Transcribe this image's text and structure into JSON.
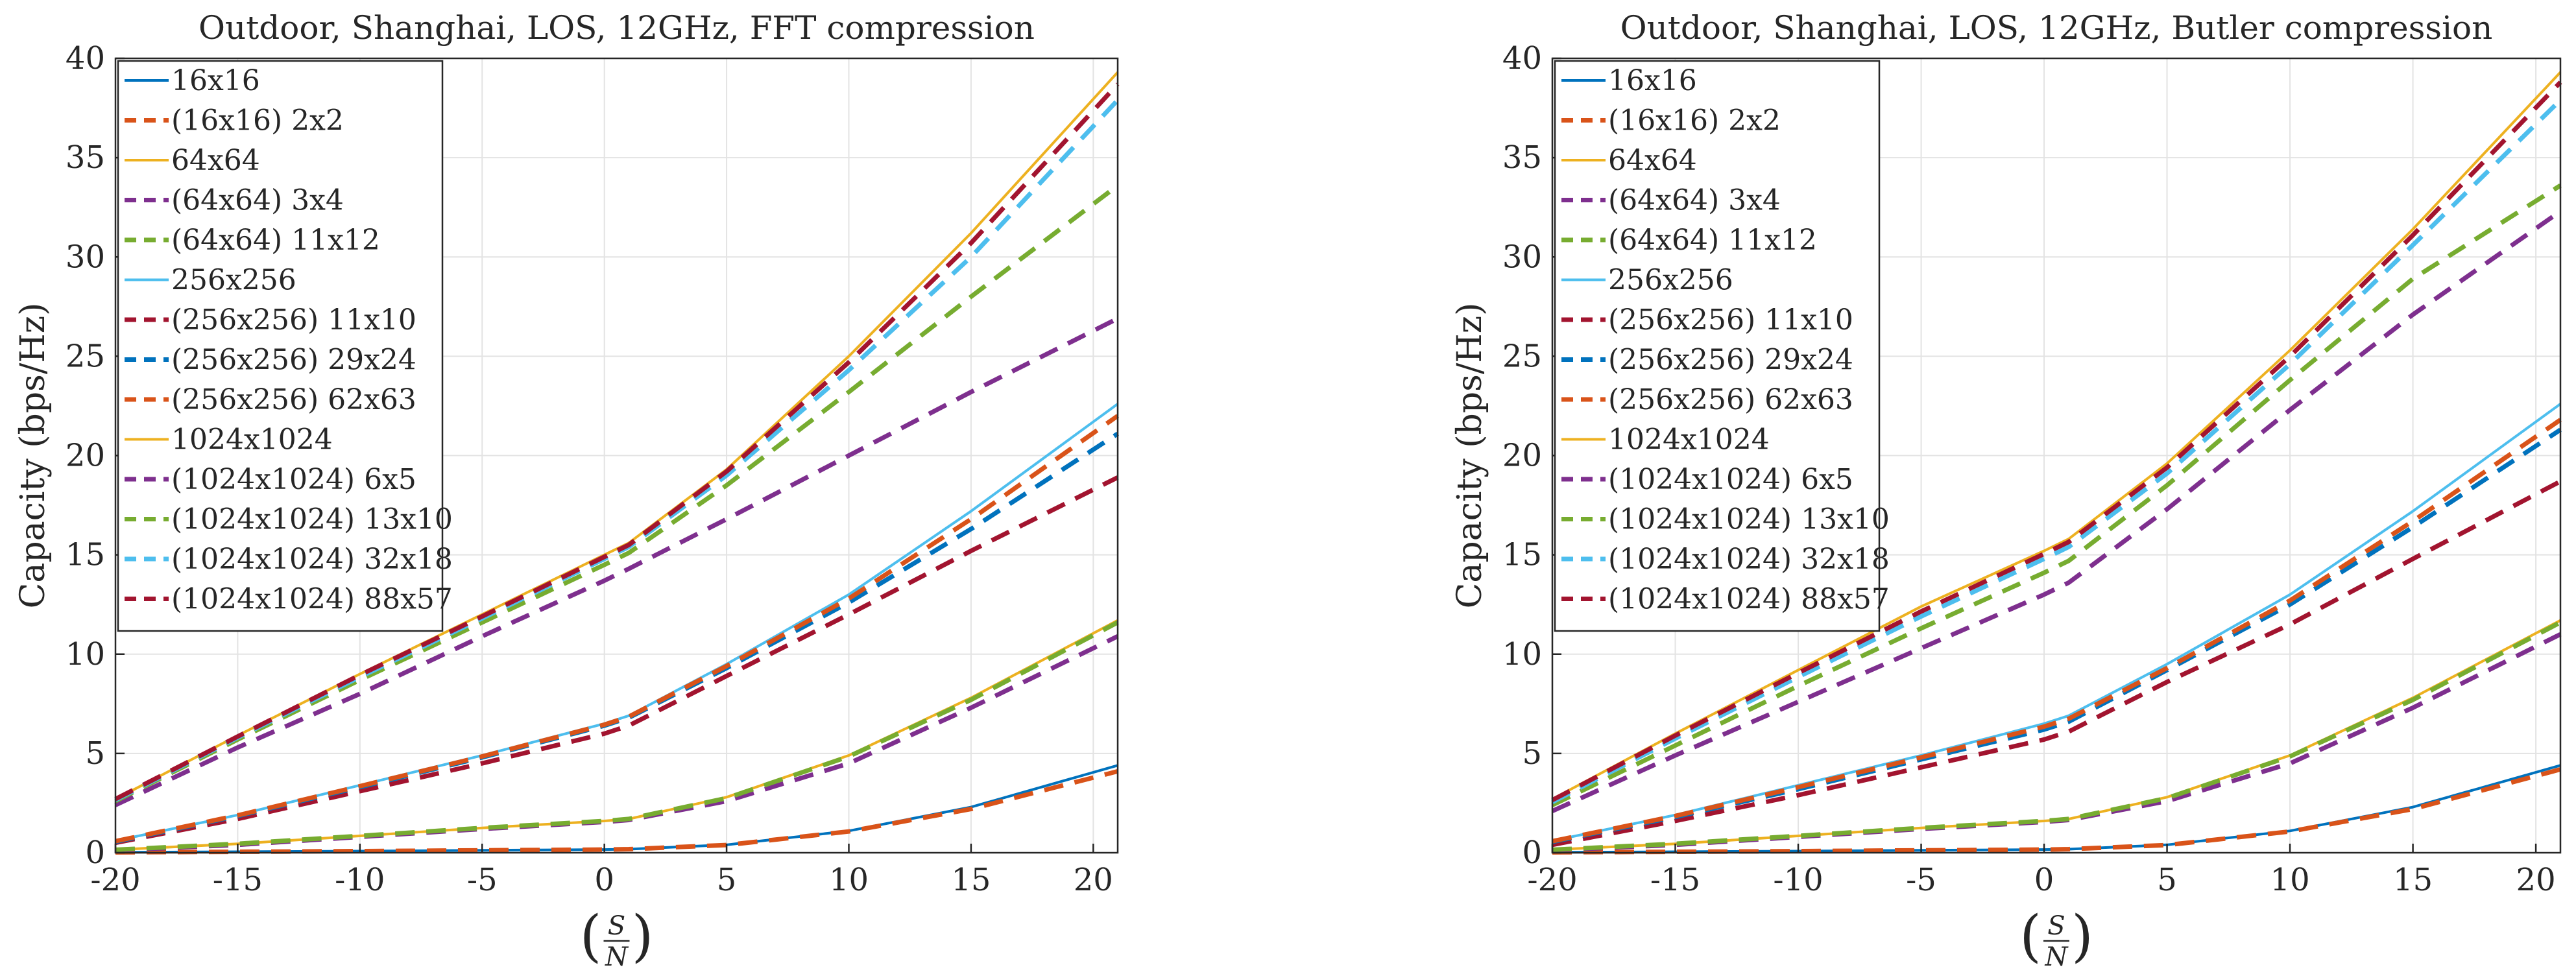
{
  "colors": {
    "blue": "#0072BD",
    "orange": "#D95319",
    "yellow": "#EDB120",
    "purple": "#7E2F8E",
    "green": "#77AC30",
    "cyan": "#4DBEEE",
    "red": "#A2142F",
    "grid": "#e3e3e3",
    "axis": "#262626"
  },
  "chart_data": [
    {
      "type": "line",
      "title": "Outdoor, Shanghai, LOS, 12GHz, FFT compression",
      "xlabel": "(S/N)",
      "ylabel": "Capacity (bps/Hz)",
      "xlim": [
        -20,
        21
      ],
      "ylim": [
        0,
        40
      ],
      "xticks": [
        -20,
        -15,
        -10,
        -5,
        0,
        5,
        10,
        15,
        20
      ],
      "yticks": [
        0,
        5,
        10,
        15,
        20,
        25,
        30,
        35,
        40
      ],
      "xtick_labels": [
        "-20",
        "-15",
        "-10",
        "-5",
        "0",
        "5",
        "10",
        "15",
        "20"
      ],
      "ytick_labels": [
        "0",
        "5",
        "10",
        "15",
        "20",
        "25",
        "30",
        "35",
        "40"
      ],
      "grid": true,
      "legend_position": "top-left",
      "x": [
        -20,
        -15,
        -10,
        -5,
        0,
        1,
        5,
        10,
        15,
        21
      ],
      "series": [
        {
          "name": "16x16",
          "color": "blue",
          "style": "solid",
          "values": [
            0.02,
            0.05,
            0.08,
            0.12,
            0.16,
            0.18,
            0.4,
            1.1,
            2.3,
            4.4
          ]
        },
        {
          "name": "(16x16) 2x2",
          "color": "orange",
          "style": "dashed",
          "values": [
            0.02,
            0.05,
            0.08,
            0.12,
            0.16,
            0.18,
            0.39,
            1.07,
            2.2,
            4.1
          ]
        },
        {
          "name": "64x64",
          "color": "yellow",
          "style": "solid",
          "values": [
            0.15,
            0.45,
            0.85,
            1.25,
            1.6,
            1.7,
            2.8,
            4.9,
            7.8,
            11.7
          ]
        },
        {
          "name": "(64x64) 3x4",
          "color": "purple",
          "style": "dashed",
          "values": [
            0.12,
            0.4,
            0.8,
            1.2,
            1.55,
            1.65,
            2.6,
            4.5,
            7.3,
            10.9
          ]
        },
        {
          "name": "(64x64) 11x12",
          "color": "green",
          "style": "dashed",
          "values": [
            0.15,
            0.45,
            0.85,
            1.25,
            1.6,
            1.7,
            2.75,
            4.85,
            7.7,
            11.6
          ]
        },
        {
          "name": "256x256",
          "color": "cyan",
          "style": "solid",
          "values": [
            0.6,
            1.9,
            3.4,
            4.9,
            6.5,
            6.9,
            9.5,
            13.0,
            17.2,
            22.6
          ]
        },
        {
          "name": "(256x256) 11x10",
          "color": "red",
          "style": "dashed",
          "values": [
            0.5,
            1.7,
            3.1,
            4.5,
            6.0,
            6.4,
            8.9,
            12.0,
            15.2,
            18.9
          ]
        },
        {
          "name": "(256x256) 29x24",
          "color": "blue",
          "style": "dashed",
          "values": [
            0.55,
            1.85,
            3.3,
            4.8,
            6.4,
            6.8,
            9.3,
            12.6,
            16.3,
            21.1
          ]
        },
        {
          "name": "(256x256) 62x63",
          "color": "orange",
          "style": "dashed",
          "values": [
            0.58,
            1.88,
            3.35,
            4.85,
            6.45,
            6.85,
            9.4,
            12.8,
            16.8,
            22.0
          ]
        },
        {
          "name": "1024x1024",
          "color": "yellow",
          "style": "solid",
          "values": [
            2.7,
            5.9,
            9.0,
            12.0,
            15.0,
            15.6,
            19.3,
            25.0,
            31.2,
            39.3
          ]
        },
        {
          "name": "(1024x1024) 6x5",
          "color": "purple",
          "style": "dashed",
          "values": [
            2.4,
            5.3,
            8.0,
            10.9,
            13.7,
            14.3,
            16.8,
            20.0,
            23.2,
            26.9
          ]
        },
        {
          "name": "(1024x1024) 13x10",
          "color": "green",
          "style": "dashed",
          "values": [
            2.6,
            5.7,
            8.7,
            11.6,
            14.5,
            15.1,
            18.5,
            23.2,
            28.0,
            33.6
          ]
        },
        {
          "name": "(1024x1024) 32x18",
          "color": "cyan",
          "style": "dashed",
          "values": [
            2.65,
            5.8,
            8.85,
            11.8,
            14.8,
            15.4,
            19.0,
            24.3,
            30.0,
            37.9
          ]
        },
        {
          "name": "(1024x1024) 88x57",
          "color": "red",
          "style": "dashed",
          "values": [
            2.7,
            5.85,
            8.95,
            11.9,
            14.9,
            15.5,
            19.2,
            24.7,
            30.7,
            38.7
          ]
        }
      ]
    },
    {
      "type": "line",
      "title": "Outdoor, Shanghai, LOS, 12GHz, Butler compression",
      "xlabel": "(S/N)",
      "ylabel": "Capacity (bps/Hz)",
      "xlim": [
        -20,
        21
      ],
      "ylim": [
        0,
        40
      ],
      "xticks": [
        -20,
        -15,
        -10,
        -5,
        0,
        5,
        10,
        15,
        20
      ],
      "yticks": [
        0,
        5,
        10,
        15,
        20,
        25,
        30,
        35,
        40
      ],
      "xtick_labels": [
        "-20",
        "-15",
        "-10",
        "-5",
        "0",
        "5",
        "10",
        "15",
        "20"
      ],
      "ytick_labels": [
        "0",
        "5",
        "10",
        "15",
        "20",
        "25",
        "30",
        "35",
        "40"
      ],
      "grid": true,
      "legend_position": "top-left",
      "x": [
        -20,
        -15,
        -10,
        -5,
        0,
        1,
        5,
        10,
        15,
        21
      ],
      "series": [
        {
          "name": "16x16",
          "color": "blue",
          "style": "solid",
          "values": [
            0.02,
            0.05,
            0.08,
            0.12,
            0.16,
            0.18,
            0.4,
            1.1,
            2.3,
            4.4
          ]
        },
        {
          "name": "(16x16) 2x2",
          "color": "orange",
          "style": "dashed",
          "values": [
            0.02,
            0.05,
            0.08,
            0.12,
            0.16,
            0.18,
            0.39,
            1.07,
            2.2,
            4.2
          ]
        },
        {
          "name": "64x64",
          "color": "yellow",
          "style": "solid",
          "values": [
            0.15,
            0.45,
            0.85,
            1.25,
            1.6,
            1.7,
            2.8,
            4.9,
            7.8,
            11.7
          ]
        },
        {
          "name": "(64x64) 3x4",
          "color": "purple",
          "style": "dashed",
          "values": [
            0.12,
            0.4,
            0.8,
            1.2,
            1.55,
            1.65,
            2.6,
            4.5,
            7.3,
            11.0
          ]
        },
        {
          "name": "(64x64) 11x12",
          "color": "green",
          "style": "dashed",
          "values": [
            0.15,
            0.45,
            0.85,
            1.25,
            1.6,
            1.7,
            2.75,
            4.85,
            7.7,
            11.6
          ]
        },
        {
          "name": "256x256",
          "color": "cyan",
          "style": "solid",
          "values": [
            0.6,
            1.9,
            3.4,
            4.9,
            6.5,
            6.9,
            9.5,
            13.0,
            17.2,
            22.6
          ]
        },
        {
          "name": "(256x256) 11x10",
          "color": "red",
          "style": "dashed",
          "values": [
            0.4,
            1.6,
            2.9,
            4.3,
            5.7,
            6.1,
            8.6,
            11.5,
            14.8,
            18.7
          ]
        },
        {
          "name": "(256x256) 29x24",
          "color": "blue",
          "style": "dashed",
          "values": [
            0.55,
            1.8,
            3.2,
            4.7,
            6.2,
            6.6,
            9.2,
            12.5,
            16.4,
            21.3
          ]
        },
        {
          "name": "(256x256) 62x63",
          "color": "orange",
          "style": "dashed",
          "values": [
            0.58,
            1.85,
            3.3,
            4.8,
            6.35,
            6.75,
            9.3,
            12.7,
            16.7,
            21.8
          ]
        },
        {
          "name": "1024x1024",
          "color": "yellow",
          "style": "solid",
          "values": [
            2.7,
            6.0,
            9.2,
            12.4,
            15.2,
            15.8,
            19.6,
            25.3,
            31.4,
            39.3
          ]
        },
        {
          "name": "(1024x1024) 6x5",
          "color": "purple",
          "style": "dashed",
          "values": [
            2.1,
            4.9,
            7.6,
            10.3,
            13.0,
            13.6,
            17.3,
            22.3,
            27.1,
            32.3
          ]
        },
        {
          "name": "(1024x1024) 13x10",
          "color": "green",
          "style": "dashed",
          "values": [
            2.4,
            5.4,
            8.4,
            11.3,
            14.1,
            14.7,
            18.5,
            23.8,
            28.9,
            33.6
          ]
        },
        {
          "name": "(1024x1024) 32x18",
          "color": "cyan",
          "style": "dashed",
          "values": [
            2.55,
            5.75,
            8.85,
            11.9,
            14.8,
            15.4,
            19.1,
            24.6,
            30.6,
            37.9
          ]
        },
        {
          "name": "(1024x1024) 88x57",
          "color": "red",
          "style": "dashed",
          "values": [
            2.65,
            5.9,
            9.05,
            12.15,
            15.05,
            15.65,
            19.4,
            25.0,
            31.1,
            38.8
          ]
        }
      ]
    }
  ]
}
